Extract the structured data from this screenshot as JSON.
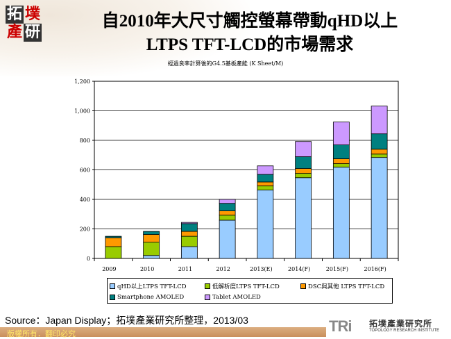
{
  "header": {
    "logo_text": [
      "拓",
      "墣",
      "產",
      "研"
    ],
    "title_line1": "自2010年大尺寸觸控螢幕帶動qHD以上",
    "title_line2": "LTPS TFT-LCD的市場需求"
  },
  "chart_data": {
    "type": "bar",
    "stacked": true,
    "title": "經過良率計算後的G4.5基板產能 (K Sheet/M)",
    "categories": [
      "2009",
      "2010",
      "2011",
      "2012",
      "2013(E)",
      "2014(F)",
      "2015(F)",
      "2016(F)"
    ],
    "ylim": [
      0,
      1200
    ],
    "yticks": [
      "0",
      "200",
      "400",
      "600",
      "800",
      "1,000",
      "1,200"
    ],
    "grid": true,
    "legend_position": "bottom",
    "series": [
      {
        "name": "qHD以上LTPS TFT-LCD",
        "color": "#99ccff",
        "values": [
          0,
          20,
          80,
          259,
          463,
          547,
          618,
          684
        ]
      },
      {
        "name": "低解析度LTPS TFT-LCD",
        "color": "#99cc00",
        "values": [
          80,
          90,
          70,
          34,
          28,
          29,
          24,
          23
        ]
      },
      {
        "name": "DSC與其他 LTPS TFT-LCD",
        "color": "#ff9900",
        "values": [
          60,
          52,
          33,
          29,
          27,
          33,
          33,
          33
        ]
      },
      {
        "name": "Smartphone AMOLED",
        "color": "#008080",
        "values": [
          10,
          21,
          53,
          51,
          51,
          80,
          94,
          104
        ]
      },
      {
        "name": "Tablet AMOLED",
        "color": "#cc99ff",
        "values": [
          0,
          0,
          8,
          27,
          58,
          103,
          155,
          188
        ]
      }
    ]
  },
  "footer": {
    "source": "Source：Japan Display；拓墣產業研究所整理，2013/03",
    "copyright": "版權所有．翻印必究",
    "tri_logo": "TRi",
    "tri_cn": "拓墣產業研究所",
    "tri_en": "TOPOLOGY RESEARCH INSTITUTE"
  }
}
